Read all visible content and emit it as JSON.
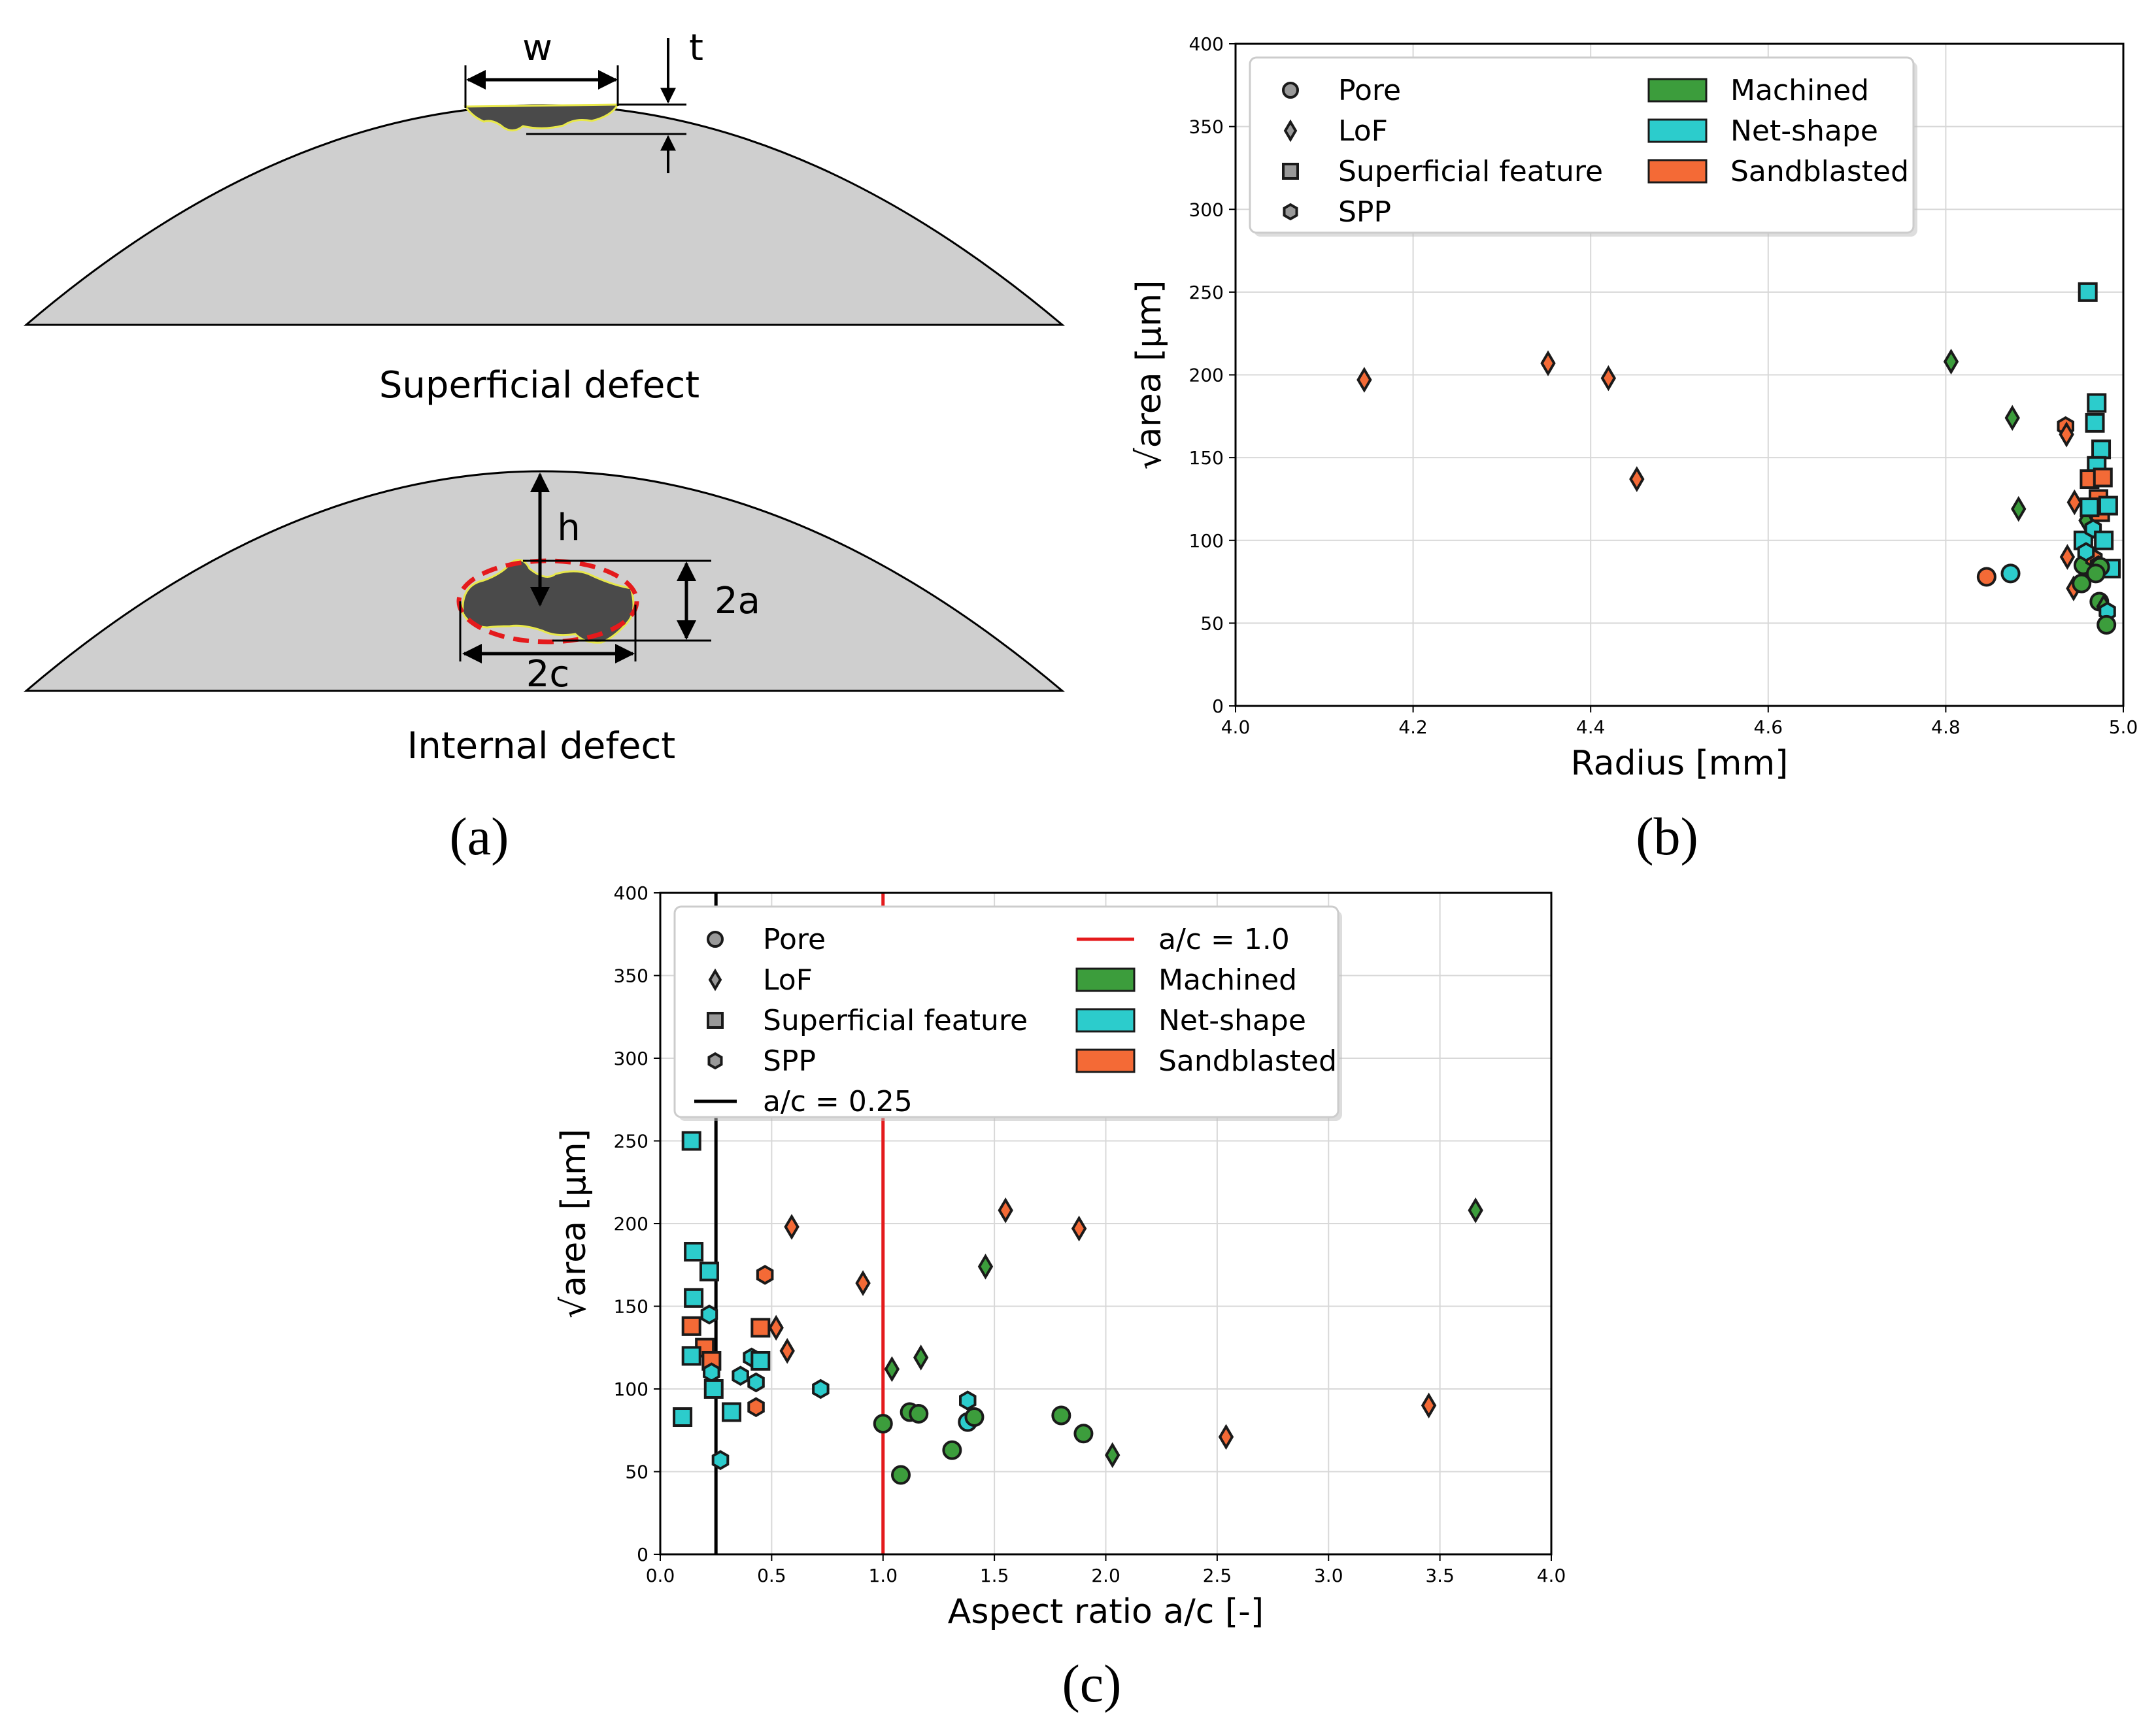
{
  "figure": {
    "panel_labels": [
      "(a)",
      "(b)",
      "(c)"
    ]
  },
  "diagram": {
    "superficial_caption": "Superficial defect",
    "internal_caption": "Internal defect",
    "label_w": "w",
    "label_t": "t",
    "label_h": "h",
    "label_2a": "2a",
    "label_2c": "2c"
  },
  "colors": {
    "Machined": "#3c9d3c",
    "Net-shape": "#2ccccc",
    "Sandblasted": "#f46a36",
    "ac025": "#000000",
    "ac10": "#e41a1c"
  },
  "chart_data": [
    {
      "id": "b",
      "type": "scatter",
      "xlabel": "Radius [mm]",
      "ylabel": "√area [µm]",
      "xlim": [
        4.0,
        5.0
      ],
      "ylim": [
        0,
        400
      ],
      "xticks": [
        "4.0",
        "4.2",
        "4.4",
        "4.6",
        "4.8",
        "5.0"
      ],
      "yticks": [
        "0",
        "50",
        "100",
        "150",
        "200",
        "250",
        "300",
        "350",
        "400"
      ],
      "legend_position": "top-left",
      "legend_markers": [
        "Pore",
        "LoF",
        "Superficial feature",
        "SPP"
      ],
      "legend_patches": [
        "Machined",
        "Net-shape",
        "Sandblasted"
      ],
      "points": [
        {
          "x": 4.145,
          "y": 197,
          "m": "LoF",
          "s": "Sandblasted"
        },
        {
          "x": 4.352,
          "y": 207,
          "m": "LoF",
          "s": "Sandblasted"
        },
        {
          "x": 4.42,
          "y": 198,
          "m": "LoF",
          "s": "Sandblasted"
        },
        {
          "x": 4.452,
          "y": 137,
          "m": "LoF",
          "s": "Sandblasted"
        },
        {
          "x": 4.806,
          "y": 208,
          "m": "LoF",
          "s": "Machined"
        },
        {
          "x": 4.875,
          "y": 174,
          "m": "LoF",
          "s": "Machined"
        },
        {
          "x": 4.882,
          "y": 119,
          "m": "LoF",
          "s": "Machined"
        },
        {
          "x": 4.846,
          "y": 78,
          "m": "Pore",
          "s": "Sandblasted"
        },
        {
          "x": 4.873,
          "y": 80,
          "m": "Pore",
          "s": "Net-shape"
        },
        {
          "x": 4.935,
          "y": 169,
          "m": "SPP",
          "s": "Sandblasted"
        },
        {
          "x": 4.936,
          "y": 164,
          "m": "LoF",
          "s": "Sandblasted"
        },
        {
          "x": 4.945,
          "y": 123,
          "m": "LoF",
          "s": "Sandblasted"
        },
        {
          "x": 4.937,
          "y": 90,
          "m": "LoF",
          "s": "Sandblasted"
        },
        {
          "x": 4.944,
          "y": 71,
          "m": "LoF",
          "s": "Sandblasted"
        },
        {
          "x": 4.955,
          "y": 85,
          "m": "Pore",
          "s": "Machined"
        },
        {
          "x": 4.953,
          "y": 74,
          "m": "Pore",
          "s": "Machined"
        },
        {
          "x": 4.958,
          "y": 112,
          "m": "LoF",
          "s": "Machined"
        },
        {
          "x": 4.96,
          "y": 250,
          "m": "Superficial feature",
          "s": "Net-shape"
        },
        {
          "x": 4.97,
          "y": 183,
          "m": "Superficial feature",
          "s": "Net-shape"
        },
        {
          "x": 4.968,
          "y": 171,
          "m": "Superficial feature",
          "s": "Net-shape"
        },
        {
          "x": 4.975,
          "y": 155,
          "m": "Superficial feature",
          "s": "Net-shape"
        },
        {
          "x": 4.97,
          "y": 145,
          "m": "Superficial feature",
          "s": "Net-shape"
        },
        {
          "x": 4.962,
          "y": 137,
          "m": "Superficial feature",
          "s": "Sandblasted"
        },
        {
          "x": 4.977,
          "y": 138,
          "m": "Superficial feature",
          "s": "Sandblasted"
        },
        {
          "x": 4.972,
          "y": 125,
          "m": "Superficial feature",
          "s": "Sandblasted"
        },
        {
          "x": 4.974,
          "y": 117,
          "m": "Superficial feature",
          "s": "Sandblasted"
        },
        {
          "x": 4.983,
          "y": 121,
          "m": "Superficial feature",
          "s": "Net-shape"
        },
        {
          "x": 4.962,
          "y": 120,
          "m": "Superficial feature",
          "s": "Net-shape"
        },
        {
          "x": 4.955,
          "y": 100,
          "m": "Superficial feature",
          "s": "Net-shape"
        },
        {
          "x": 4.966,
          "y": 107,
          "m": "SPP",
          "s": "Net-shape"
        },
        {
          "x": 4.978,
          "y": 100,
          "m": "Superficial feature",
          "s": "Net-shape"
        },
        {
          "x": 4.967,
          "y": 89,
          "m": "SPP",
          "s": "Sandblasted"
        },
        {
          "x": 4.972,
          "y": 85,
          "m": "SPP",
          "s": "Net-shape"
        },
        {
          "x": 4.986,
          "y": 83,
          "m": "Superficial feature",
          "s": "Net-shape"
        },
        {
          "x": 4.974,
          "y": 84,
          "m": "Pore",
          "s": "Machined"
        },
        {
          "x": 4.969,
          "y": 80,
          "m": "Pore",
          "s": "Machined"
        },
        {
          "x": 4.973,
          "y": 63,
          "m": "Pore",
          "s": "Machined"
        },
        {
          "x": 4.978,
          "y": 60,
          "m": "LoF",
          "s": "Machined"
        },
        {
          "x": 4.982,
          "y": 57,
          "m": "SPP",
          "s": "Net-shape"
        },
        {
          "x": 4.981,
          "y": 49,
          "m": "Pore",
          "s": "Machined"
        },
        {
          "x": 4.958,
          "y": 93,
          "m": "SPP",
          "s": "Net-shape"
        }
      ]
    },
    {
      "id": "c",
      "type": "scatter",
      "xlabel": "Aspect ratio a/c [-]",
      "ylabel": "√area [µm]",
      "xlim": [
        0.0,
        4.0
      ],
      "ylim": [
        0,
        400
      ],
      "xticks": [
        "0.0",
        "0.5",
        "1.0",
        "1.5",
        "2.0",
        "2.5",
        "3.0",
        "3.5",
        "4.0"
      ],
      "yticks": [
        "0",
        "50",
        "100",
        "150",
        "200",
        "250",
        "300",
        "350",
        "400"
      ],
      "legend_position": "top-left",
      "legend_markers": [
        "Pore",
        "LoF",
        "Superficial feature",
        "SPP"
      ],
      "legend_line_025": "a/c = 0.25",
      "legend_line_10": "a/c = 1.0",
      "legend_patches": [
        "Machined",
        "Net-shape",
        "Sandblasted"
      ],
      "vlines": [
        {
          "x": 0.25,
          "color": "ac025"
        },
        {
          "x": 1.0,
          "color": "ac10"
        }
      ],
      "points": [
        {
          "x": 0.14,
          "y": 250,
          "m": "Superficial feature",
          "s": "Net-shape"
        },
        {
          "x": 0.15,
          "y": 183,
          "m": "Superficial feature",
          "s": "Net-shape"
        },
        {
          "x": 0.22,
          "y": 171,
          "m": "Superficial feature",
          "s": "Net-shape"
        },
        {
          "x": 0.15,
          "y": 155,
          "m": "Superficial feature",
          "s": "Net-shape"
        },
        {
          "x": 0.22,
          "y": 145,
          "m": "SPP",
          "s": "Net-shape"
        },
        {
          "x": 0.14,
          "y": 138,
          "m": "Superficial feature",
          "s": "Sandblasted"
        },
        {
          "x": 0.2,
          "y": 125,
          "m": "Superficial feature",
          "s": "Sandblasted"
        },
        {
          "x": 0.14,
          "y": 120,
          "m": "Superficial feature",
          "s": "Net-shape"
        },
        {
          "x": 0.23,
          "y": 117,
          "m": "Superficial feature",
          "s": "Sandblasted"
        },
        {
          "x": 0.23,
          "y": 110,
          "m": "SPP",
          "s": "Net-shape"
        },
        {
          "x": 0.24,
          "y": 100,
          "m": "Superficial feature",
          "s": "Net-shape"
        },
        {
          "x": 0.1,
          "y": 83,
          "m": "Superficial feature",
          "s": "Net-shape"
        },
        {
          "x": 0.32,
          "y": 86,
          "m": "Superficial feature",
          "s": "Net-shape"
        },
        {
          "x": 0.27,
          "y": 57,
          "m": "SPP",
          "s": "Net-shape"
        },
        {
          "x": 0.36,
          "y": 108,
          "m": "SPP",
          "s": "Net-shape"
        },
        {
          "x": 0.43,
          "y": 104,
          "m": "SPP",
          "s": "Net-shape"
        },
        {
          "x": 0.43,
          "y": 89,
          "m": "SPP",
          "s": "Sandblasted"
        },
        {
          "x": 0.41,
          "y": 119,
          "m": "SPP",
          "s": "Net-shape"
        },
        {
          "x": 0.45,
          "y": 117,
          "m": "Superficial feature",
          "s": "Net-shape"
        },
        {
          "x": 0.45,
          "y": 137,
          "m": "Superficial feature",
          "s": "Sandblasted"
        },
        {
          "x": 0.47,
          "y": 169,
          "m": "SPP",
          "s": "Sandblasted"
        },
        {
          "x": 0.52,
          "y": 137,
          "m": "LoF",
          "s": "Sandblasted"
        },
        {
          "x": 0.57,
          "y": 123,
          "m": "LoF",
          "s": "Sandblasted"
        },
        {
          "x": 0.59,
          "y": 198,
          "m": "LoF",
          "s": "Sandblasted"
        },
        {
          "x": 0.72,
          "y": 100,
          "m": "SPP",
          "s": "Net-shape"
        },
        {
          "x": 0.91,
          "y": 164,
          "m": "LoF",
          "s": "Sandblasted"
        },
        {
          "x": 1.0,
          "y": 79,
          "m": "Pore",
          "s": "Machined"
        },
        {
          "x": 1.04,
          "y": 112,
          "m": "LoF",
          "s": "Machined"
        },
        {
          "x": 1.08,
          "y": 48,
          "m": "Pore",
          "s": "Machined"
        },
        {
          "x": 1.12,
          "y": 86,
          "m": "Pore",
          "s": "Machined"
        },
        {
          "x": 1.16,
          "y": 85,
          "m": "Pore",
          "s": "Machined"
        },
        {
          "x": 1.17,
          "y": 119,
          "m": "LoF",
          "s": "Machined"
        },
        {
          "x": 1.31,
          "y": 63,
          "m": "Pore",
          "s": "Machined"
        },
        {
          "x": 1.38,
          "y": 93,
          "m": "SPP",
          "s": "Net-shape"
        },
        {
          "x": 1.38,
          "y": 80,
          "m": "Pore",
          "s": "Net-shape"
        },
        {
          "x": 1.41,
          "y": 83,
          "m": "Pore",
          "s": "Machined"
        },
        {
          "x": 1.46,
          "y": 174,
          "m": "LoF",
          "s": "Machined"
        },
        {
          "x": 1.55,
          "y": 208,
          "m": "LoF",
          "s": "Sandblasted"
        },
        {
          "x": 1.8,
          "y": 84,
          "m": "Pore",
          "s": "Machined"
        },
        {
          "x": 1.88,
          "y": 197,
          "m": "LoF",
          "s": "Sandblasted"
        },
        {
          "x": 1.9,
          "y": 73,
          "m": "Pore",
          "s": "Machined"
        },
        {
          "x": 2.03,
          "y": 60,
          "m": "LoF",
          "s": "Machined"
        },
        {
          "x": 2.54,
          "y": 71,
          "m": "LoF",
          "s": "Sandblasted"
        },
        {
          "x": 3.45,
          "y": 90,
          "m": "LoF",
          "s": "Sandblasted"
        },
        {
          "x": 3.66,
          "y": 208,
          "m": "LoF",
          "s": "Machined"
        }
      ]
    }
  ]
}
